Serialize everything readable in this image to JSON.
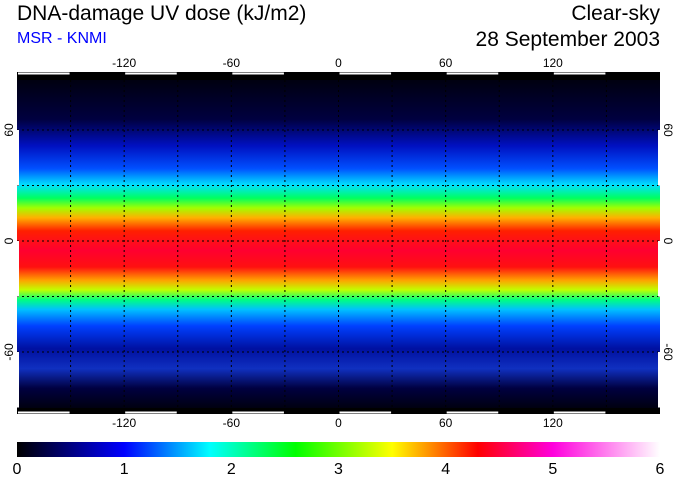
{
  "header": {
    "title": "DNA-damage UV dose (kJ/m2)",
    "source": "MSR - KNMI",
    "condition": "Clear-sky",
    "date": "28 September 2003"
  },
  "map": {
    "lon_ticks": [
      "-120",
      "-60",
      "0",
      "60",
      "120"
    ],
    "lon_values": [
      -120,
      -60,
      0,
      60,
      120
    ],
    "lat_ticks": [
      "60",
      "0",
      "-60"
    ],
    "lat_values": [
      60,
      0,
      -60
    ],
    "grid_spacing_deg": 30
  },
  "colorbar": {
    "labels": [
      "0",
      "1",
      "2",
      "3",
      "4",
      "5",
      "6"
    ],
    "min": 0,
    "max": 6,
    "stops": [
      {
        "v": 0,
        "c": "#000000"
      },
      {
        "v": 1,
        "c": "#0000ff"
      },
      {
        "v": 1.8,
        "c": "#00ffff"
      },
      {
        "v": 2.6,
        "c": "#00ff00"
      },
      {
        "v": 3.5,
        "c": "#ffff00"
      },
      {
        "v": 4.3,
        "c": "#ff0000"
      },
      {
        "v": 5.0,
        "c": "#ff00dd"
      },
      {
        "v": 6,
        "c": "#ffffff"
      }
    ]
  }
}
